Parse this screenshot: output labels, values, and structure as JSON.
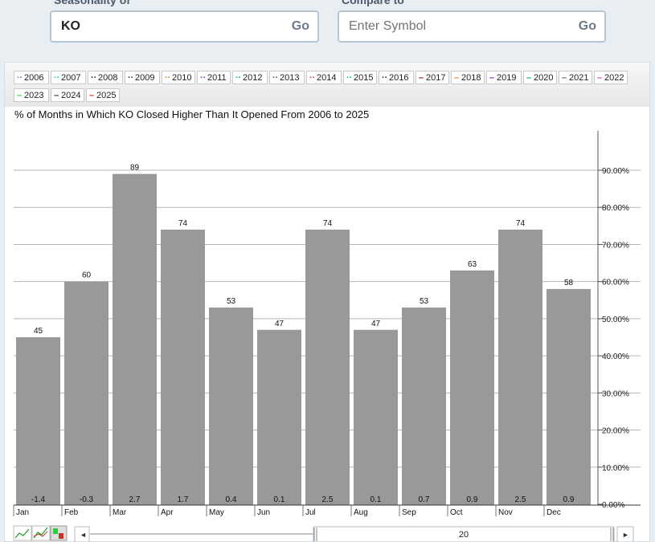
{
  "header": {
    "seasonality_label": "Seasonality of",
    "symbol_value": "KO",
    "go_label": "Go",
    "compare_label": "Compare to",
    "compare_placeholder": "Enter Symbol",
    "compare_go_label": "Go"
  },
  "legend": [
    {
      "year": "2006",
      "color": "#9b59b6",
      "style": "dots"
    },
    {
      "year": "2007",
      "color": "#2ecc71",
      "style": "dots"
    },
    {
      "year": "2008",
      "color": "#333333",
      "style": "dots"
    },
    {
      "year": "2009",
      "color": "#333333",
      "style": "dots"
    },
    {
      "year": "2010",
      "color": "#e67e22",
      "style": "dots"
    },
    {
      "year": "2011",
      "color": "#8e44ad",
      "style": "dots"
    },
    {
      "year": "2012",
      "color": "#16a085",
      "style": "dots"
    },
    {
      "year": "2013",
      "color": "#555555",
      "style": "dots"
    },
    {
      "year": "2014",
      "color": "#c0399b",
      "style": "dots"
    },
    {
      "year": "2015",
      "color": "#27ae60",
      "style": "dots"
    },
    {
      "year": "2016",
      "color": "#333333",
      "style": "dots"
    },
    {
      "year": "2017",
      "color": "#8b1a1a",
      "style": "solid"
    },
    {
      "year": "2018",
      "color": "#e67e22",
      "style": "solid"
    },
    {
      "year": "2019",
      "color": "#8e24aa",
      "style": "solid"
    },
    {
      "year": "2020",
      "color": "#16a085",
      "style": "solid"
    },
    {
      "year": "2021",
      "color": "#666666",
      "style": "solid"
    },
    {
      "year": "2022",
      "color": "#d63ad6",
      "style": "solid"
    },
    {
      "year": "2023",
      "color": "#2ecc40",
      "style": "solid"
    },
    {
      "year": "2024",
      "color": "#333333",
      "style": "solid"
    },
    {
      "year": "2025",
      "color": "#c0392b",
      "style": "solid"
    }
  ],
  "chart_data": {
    "type": "bar",
    "title": "% of Months in Which KO Closed Higher Than It Opened From 2006 to 2025",
    "categories": [
      "Jan",
      "Feb",
      "Mar",
      "Apr",
      "May",
      "Jun",
      "Jul",
      "Aug",
      "Sep",
      "Oct",
      "Nov",
      "Dec"
    ],
    "values": [
      45,
      60,
      89,
      74,
      53,
      47,
      74,
      47,
      53,
      63,
      74,
      58
    ],
    "avg_change": [
      "-1.4",
      "-0.3",
      "2.7",
      "1.7",
      "0.4",
      "0.1",
      "2.5",
      "0.1",
      "0.7",
      "0.9",
      "2.5",
      "0.9"
    ],
    "y_ticks": [
      "0.00%",
      "10.00%",
      "20.00%",
      "30.00%",
      "40.00%",
      "50.00%",
      "60.00%",
      "70.00%",
      "80.00%",
      "90.00%"
    ],
    "ylim": [
      0,
      100
    ],
    "y_axis_side": "right",
    "bar_color": "#999999",
    "grid": true
  },
  "navigator": {
    "value": "20"
  }
}
